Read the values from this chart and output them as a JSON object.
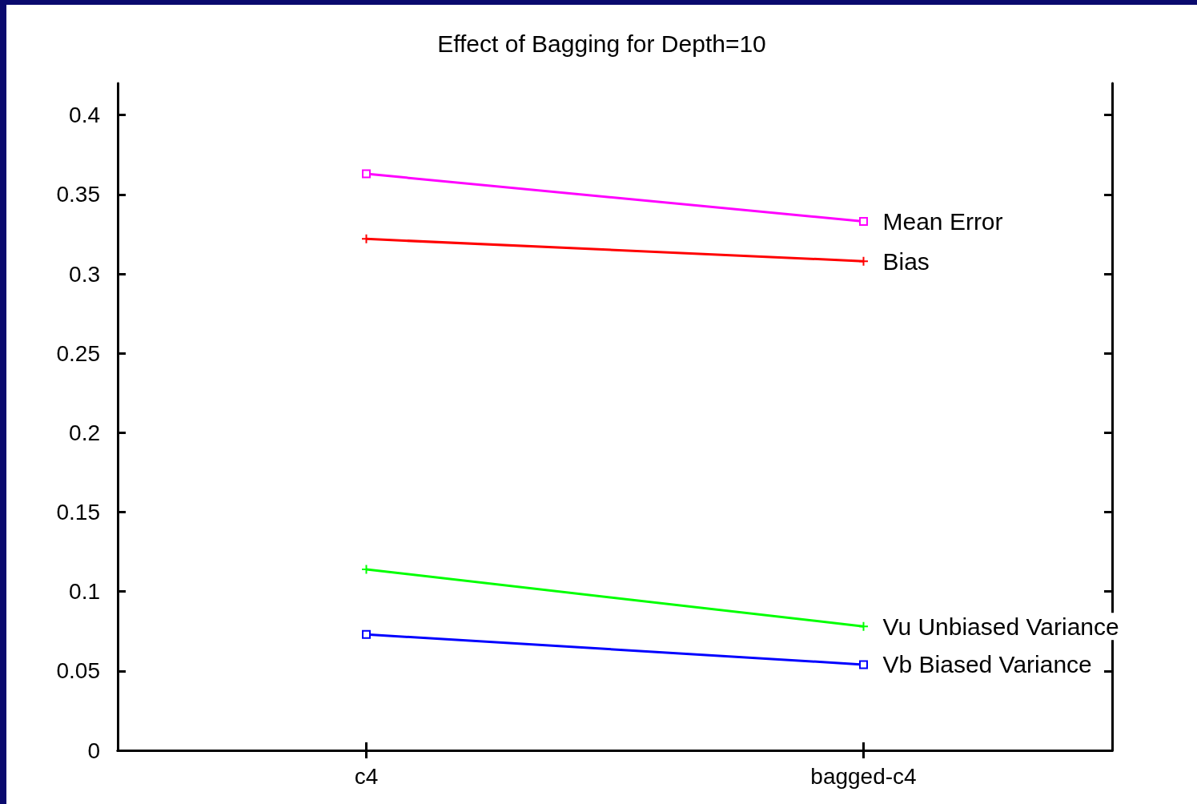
{
  "chart_data": {
    "type": "line",
    "title": "Effect of Bagging for Depth=10",
    "categories": [
      "c4",
      "bagged-c4"
    ],
    "series": [
      {
        "name": "Mean Error",
        "color": "#ff00ff",
        "marker": "square",
        "values": [
          0.363,
          0.333
        ]
      },
      {
        "name": "Bias",
        "color": "#ff0000",
        "marker": "cross",
        "values": [
          0.322,
          0.308
        ]
      },
      {
        "name": "Vu Unbiased Variance",
        "color": "#00ff00",
        "marker": "cross",
        "values": [
          0.114,
          0.078
        ]
      },
      {
        "name": "Vb Biased Variance",
        "color": "#0000ff",
        "marker": "square",
        "values": [
          0.073,
          0.054
        ]
      }
    ],
    "ylim": [
      0,
      0.42
    ],
    "yticks": [
      0,
      0.05,
      0.1,
      0.15,
      0.2,
      0.25,
      0.3,
      0.35,
      0.4
    ],
    "grid": false,
    "legend": false
  }
}
